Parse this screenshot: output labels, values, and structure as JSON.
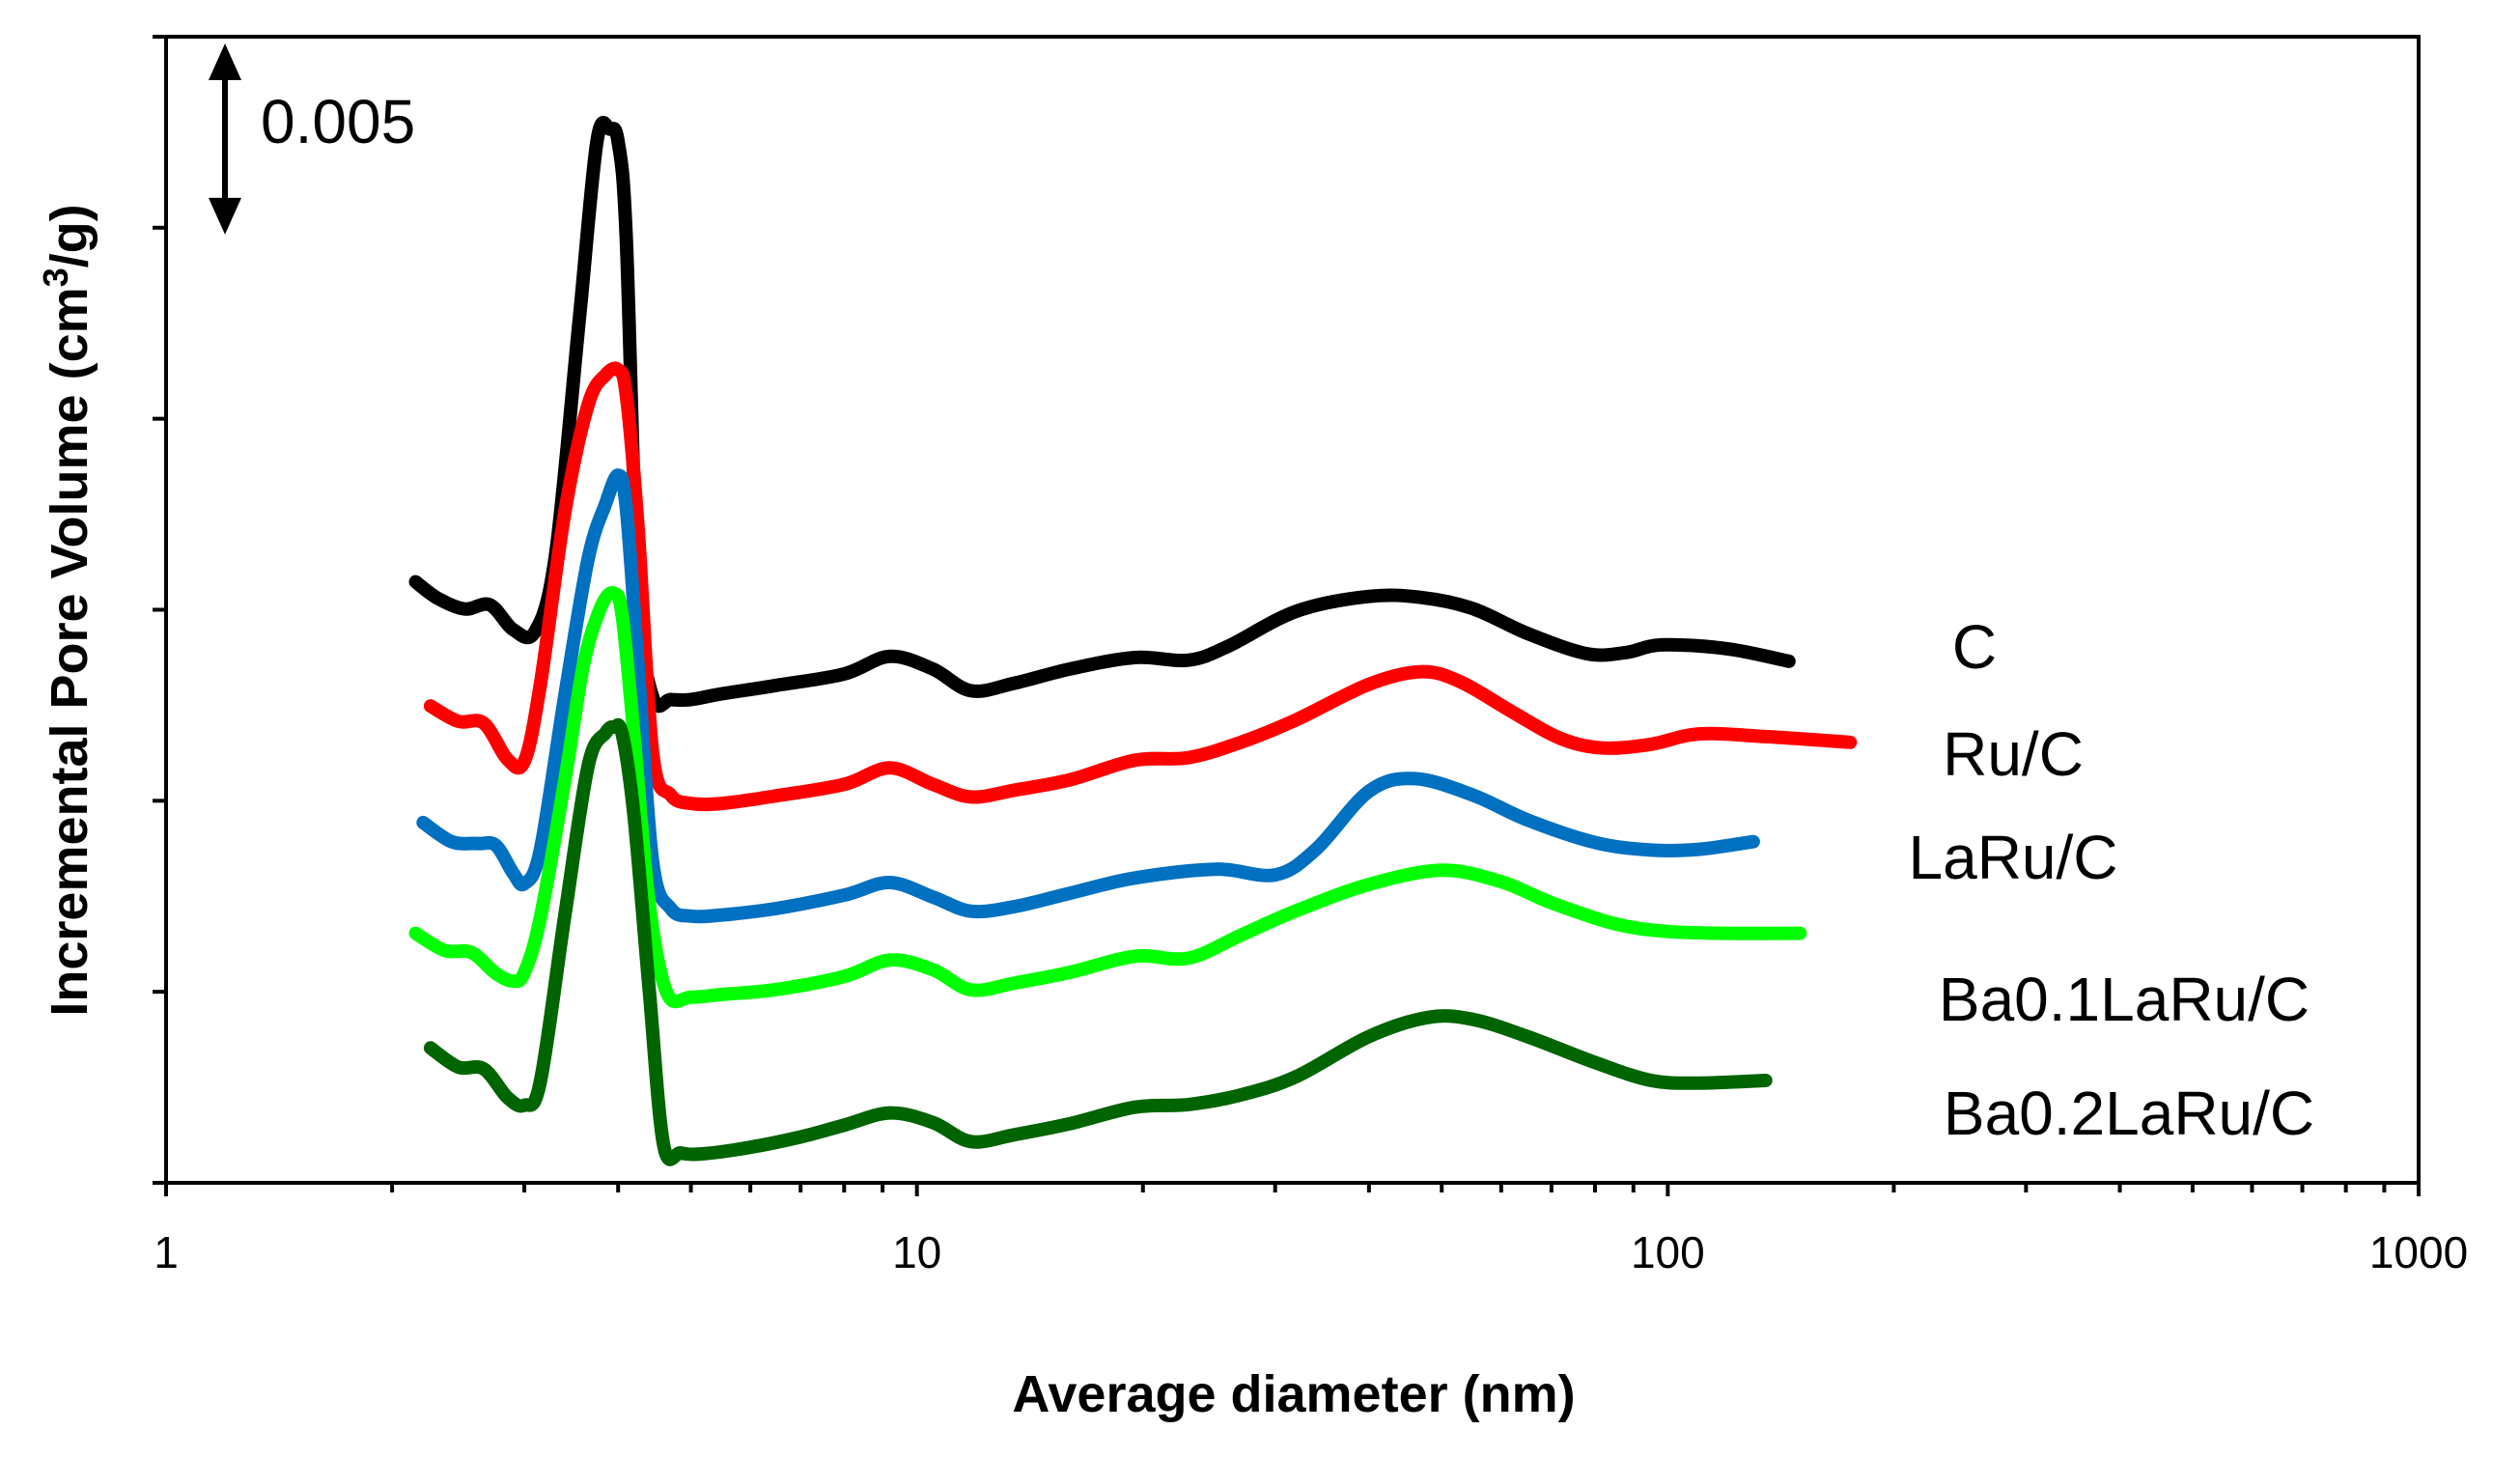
{
  "chart_data": {
    "type": "line",
    "title": "",
    "xlabel": "Average diameter (nm)",
    "ylabel_main": "Incremental Pore Volume (cm",
    "ylabel_sup": "3",
    "ylabel_end": "/g)",
    "xscale": "log",
    "xlim": [
      1,
      1000
    ],
    "ylim": [
      0,
      0.03
    ],
    "x_ticks": [
      {
        "value": 1,
        "label": "1"
      },
      {
        "value": 10,
        "label": "10"
      },
      {
        "value": 100,
        "label": "100"
      },
      {
        "value": 1000,
        "label": "1000"
      }
    ],
    "y_tick_values": [
      0,
      0.005,
      0.01,
      0.015,
      0.02,
      0.025,
      0.03
    ],
    "scale_bar": {
      "value": 0.005,
      "label": "0.005"
    },
    "series": [
      {
        "name": "C",
        "color": "#000000",
        "x": [
          2.15,
          2.3,
          2.5,
          2.7,
          2.9,
          3.1,
          3.3,
          3.55,
          3.75,
          3.9,
          4.0,
          4.1,
          4.25,
          4.45,
          4.7,
          5.0,
          5.5,
          6.5,
          8.0,
          9.2,
          10.5,
          11.8,
          13.5,
          16,
          19.5,
          23,
          26,
          32,
          40,
          47,
          55,
          65,
          78,
          88,
          98,
          120,
          145
        ],
        "y": [
          0.01573,
          0.0153,
          0.01502,
          0.01513,
          0.01448,
          0.01443,
          0.0164,
          0.02258,
          0.02728,
          0.02758,
          0.02725,
          0.0248,
          0.0155,
          0.0127,
          0.01265,
          0.01265,
          0.0128,
          0.01302,
          0.01332,
          0.01378,
          0.01345,
          0.01288,
          0.01308,
          0.01345,
          0.01375,
          0.01368,
          0.01405,
          0.01496,
          0.01535,
          0.01532,
          0.01503,
          0.01438,
          0.01385,
          0.01388,
          0.01408,
          0.01398,
          0.01365
        ]
      },
      {
        "name": "Ru/C",
        "color": "#ff0000",
        "x": [
          2.25,
          2.45,
          2.65,
          2.85,
          3.0,
          3.15,
          3.4,
          3.65,
          3.85,
          4.0,
          4.1,
          4.25,
          4.45,
          4.7,
          5.0,
          5.5,
          6.5,
          8.0,
          9.2,
          10.5,
          11.8,
          13.5,
          16,
          19.5,
          23,
          27,
          32,
          40,
          47,
          53,
          62,
          72,
          82,
          95,
          110,
          135,
          175
        ],
        "y": [
          0.01248,
          0.01208,
          0.01203,
          0.01108,
          0.01103,
          0.01302,
          0.0176,
          0.02038,
          0.02115,
          0.02128,
          0.02065,
          0.0172,
          0.0112,
          0.01015,
          0.00993,
          0.00993,
          0.01013,
          0.01043,
          0.01086,
          0.01043,
          0.0101,
          0.01028,
          0.01055,
          0.01106,
          0.01113,
          0.01153,
          0.01212,
          0.01305,
          0.01338,
          0.01311,
          0.01233,
          0.01163,
          0.01138,
          0.01148,
          0.01175,
          0.01168,
          0.01153
        ]
      },
      {
        "name": "LaRu/C",
        "color": "#0070c0",
        "x": [
          2.2,
          2.4,
          2.6,
          2.75,
          2.9,
          3.0,
          3.15,
          3.4,
          3.65,
          3.85,
          4.0,
          4.1,
          4.25,
          4.45,
          4.7,
          5.0,
          5.5,
          6.5,
          8.0,
          9.2,
          10.5,
          11.8,
          13.5,
          16,
          19.5,
          25,
          30,
          34,
          40,
          46,
          55,
          65,
          80,
          95,
          110,
          130
        ],
        "y": [
          0.00943,
          0.00893,
          0.00888,
          0.00883,
          0.0081,
          0.00783,
          0.0087,
          0.0128,
          0.01635,
          0.01778,
          0.01852,
          0.0177,
          0.0136,
          0.00836,
          0.00718,
          0.00698,
          0.00701,
          0.00718,
          0.00753,
          0.00786,
          0.00748,
          0.00711,
          0.00723,
          0.00758,
          0.00798,
          0.00821,
          0.00806,
          0.00873,
          0.01025,
          0.01058,
          0.01015,
          0.0095,
          0.00891,
          0.00871,
          0.00873,
          0.00893
        ]
      },
      {
        "name": "Ba0.1LaRu/C",
        "color": "#00ff00",
        "x": [
          2.15,
          2.35,
          2.55,
          2.75,
          2.9,
          3.0,
          3.15,
          3.4,
          3.6,
          3.8,
          3.95,
          4.05,
          4.2,
          4.4,
          4.65,
          5.0,
          5.5,
          6.5,
          8.0,
          9.2,
          10.5,
          11.8,
          13.5,
          16,
          19.5,
          23,
          27,
          32,
          40,
          50,
          60,
          70,
          85,
          100,
          120,
          150
        ],
        "y": [
          0.00653,
          0.00608,
          0.00603,
          0.00548,
          0.00528,
          0.0055,
          0.00692,
          0.01058,
          0.0136,
          0.0151,
          0.01543,
          0.01485,
          0.0117,
          0.0073,
          0.00495,
          0.00486,
          0.00493,
          0.00506,
          0.0054,
          0.00583,
          0.00558,
          0.00505,
          0.00523,
          0.00551,
          0.00593,
          0.00588,
          0.00648,
          0.00712,
          0.00781,
          0.00818,
          0.00788,
          0.00733,
          0.00678,
          0.00658,
          0.00653,
          0.00653
        ]
      },
      {
        "name": "Ba0.2LaRu/C",
        "color": "#006400",
        "x": [
          2.25,
          2.45,
          2.65,
          2.85,
          3.0,
          3.15,
          3.4,
          3.65,
          3.85,
          3.95,
          4.05,
          4.2,
          4.4,
          4.6,
          4.85,
          5.2,
          6,
          7,
          8.0,
          9.2,
          10.5,
          11.8,
          13.5,
          16,
          19.5,
          23,
          27,
          32,
          40,
          48,
          55,
          65,
          80,
          95,
          110,
          135
        ],
        "y": [
          0.00353,
          0.00303,
          0.00298,
          0.00223,
          0.00203,
          0.00263,
          0.00705,
          0.01093,
          0.01178,
          0.01193,
          0.01175,
          0.0096,
          0.00505,
          0.00098,
          0.00078,
          0.00076,
          0.00093,
          0.0012,
          0.00151,
          0.00183,
          0.00158,
          0.00108,
          0.00126,
          0.00155,
          0.00198,
          0.00205,
          0.0023,
          0.00278,
          0.00383,
          0.00433,
          0.00428,
          0.00383,
          0.00315,
          0.00268,
          0.00261,
          0.00268
        ]
      }
    ],
    "legend": [
      {
        "label": "C",
        "series": 0
      },
      {
        "label": "Ru/C",
        "series": 1
      },
      {
        "label": "LaRu/C",
        "series": 2
      },
      {
        "label": "Ba0.1LaRu/C",
        "series": 3
      },
      {
        "label": "Ba0.2LaRu/C",
        "series": 4
      }
    ],
    "grid": false
  }
}
